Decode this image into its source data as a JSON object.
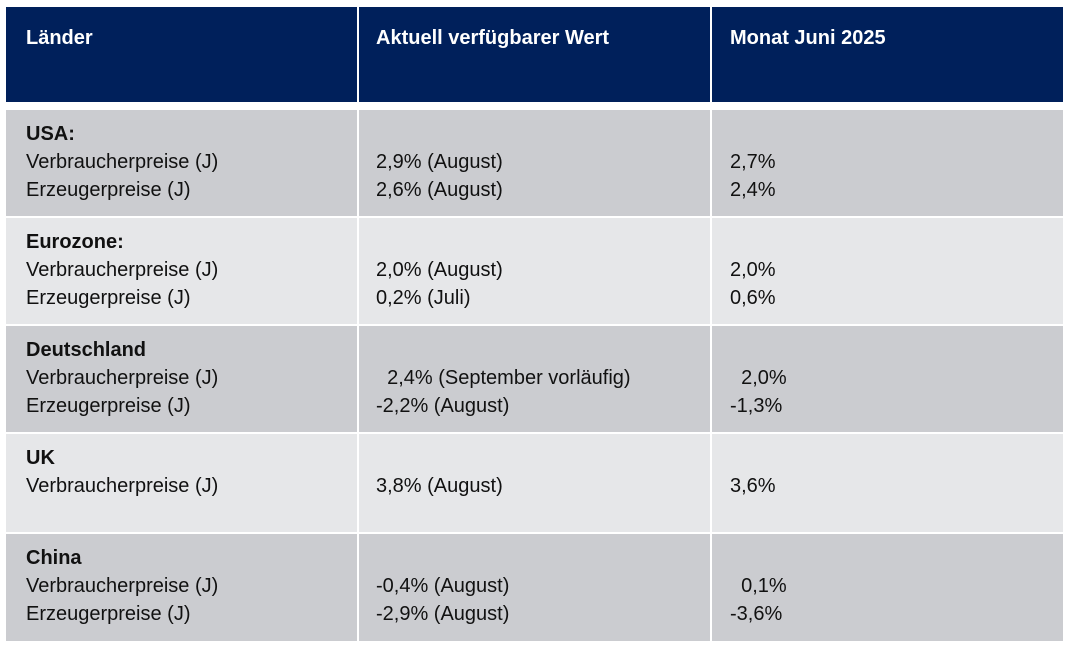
{
  "header": [
    "Länder",
    "Aktuell verfügbarer Wert",
    "Monat Juni 2025"
  ],
  "rows": [
    {
      "country": "USA:",
      "items": [
        {
          "label": "Verbraucherpreise (J)",
          "current": "2,9% (August)",
          "june": "2,7%"
        },
        {
          "label": "Erzeugerpreise (J)",
          "current": "2,6% (August)",
          "june": "2,4%"
        }
      ]
    },
    {
      "country": "Eurozone:",
      "items": [
        {
          "label": "Verbraucherpreise (J)",
          "current": "2,0% (August)",
          "june": "2,0%"
        },
        {
          "label": "Erzeugerpreise (J)",
          "current": "0,2% (Juli)",
          "june": "0,6%"
        }
      ]
    },
    {
      "country": "Deutschland",
      "items": [
        {
          "label": "Verbraucherpreise (J)",
          "current": "  2,4% (September vorläufig)",
          "june": "  2,0%"
        },
        {
          "label": "Erzeugerpreise (J)",
          "current": "-2,2% (August)",
          "june": "-1,3%"
        }
      ]
    },
    {
      "country": "UK",
      "items": [
        {
          "label": "Verbraucherpreise (J)",
          "current": "3,8% (August)",
          "june": "3,6%"
        }
      ]
    },
    {
      "country": "China",
      "items": [
        {
          "label": "Verbraucherpreise (J)",
          "current": "-0,4% (August)",
          "june": "  0,1%"
        },
        {
          "label": "Erzeugerpreise (J)",
          "current": "-2,9% (August)",
          "june": "-3,6%"
        }
      ]
    }
  ],
  "colors": {
    "header": "#00205b",
    "row_dark": "#cbccd0",
    "row_light": "#e6e7e9"
  }
}
